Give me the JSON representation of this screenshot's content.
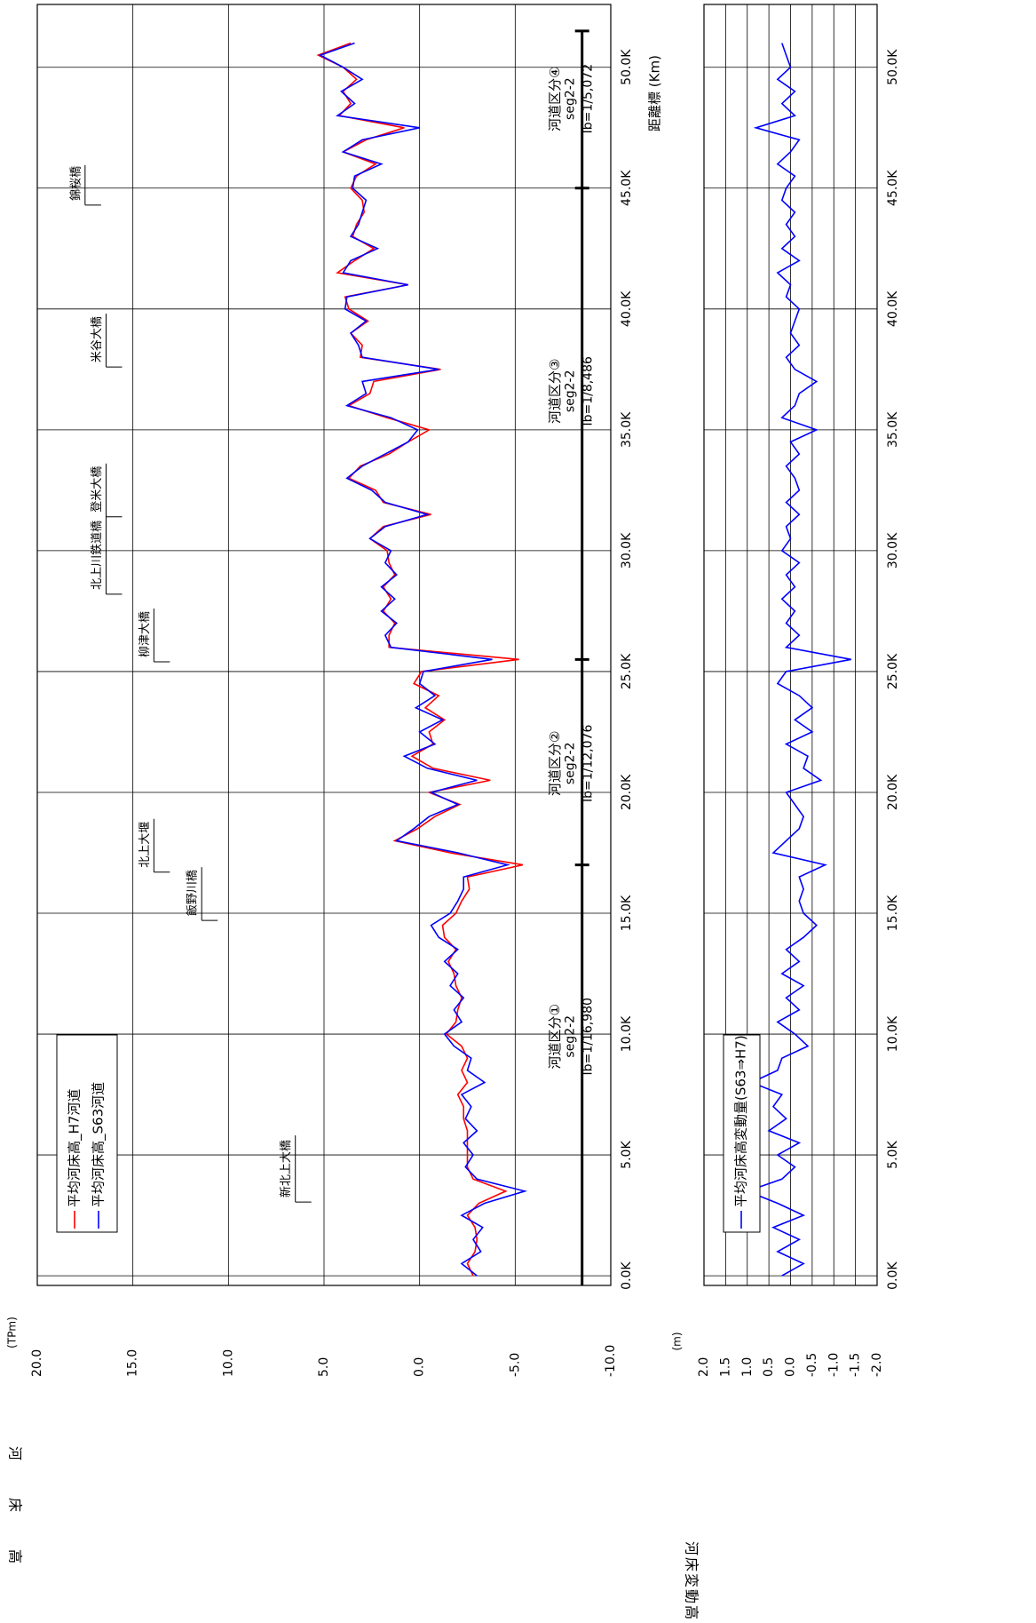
{
  "chart_data": [
    {
      "type": "line",
      "y_label": "河床高",
      "y_unit": "(TPm)",
      "x_label": "距離標 (Km)",
      "xlim": [
        -0.4,
        52.6
      ],
      "xticks": [
        {
          "value": 0,
          "label": "0.0K"
        },
        {
          "value": 5,
          "label": "5.0K"
        },
        {
          "value": 10,
          "label": "10.0K"
        },
        {
          "value": 15,
          "label": "15.0K"
        },
        {
          "value": 20,
          "label": "20.0K"
        },
        {
          "value": 25,
          "label": "25.0K"
        },
        {
          "value": 30,
          "label": "30.0K"
        },
        {
          "value": 35,
          "label": "35.0K"
        },
        {
          "value": 40,
          "label": "40.0K"
        },
        {
          "value": 45,
          "label": "45.0K"
        },
        {
          "value": 50,
          "label": "50.0K"
        }
      ],
      "ylim": [
        -10,
        20
      ],
      "yticks": [
        {
          "value": 20,
          "label": "20.0"
        },
        {
          "value": 15,
          "label": "15.0"
        },
        {
          "value": 10,
          "label": "10.0"
        },
        {
          "value": 5,
          "label": "5.0"
        },
        {
          "value": 0,
          "label": "0.0"
        },
        {
          "value": -5,
          "label": "-5.0"
        },
        {
          "value": -10,
          "label": "-10.0"
        }
      ],
      "grid": true,
      "legend": "upper left",
      "x": [
        0,
        0.5,
        1,
        1.5,
        2,
        2.5,
        3,
        3.5,
        4,
        4.5,
        5,
        5.5,
        6,
        6.5,
        7,
        7.5,
        8,
        8.5,
        9,
        9.5,
        10,
        10.5,
        11,
        11.5,
        12,
        12.5,
        13,
        13.5,
        14,
        14.5,
        15,
        15.5,
        16,
        16.5,
        17,
        17.5,
        18,
        18.5,
        19,
        19.5,
        20,
        20.5,
        21,
        21.5,
        22,
        22.5,
        23,
        23.5,
        24,
        24.5,
        25,
        25.5,
        26,
        26.5,
        27,
        27.5,
        28,
        28.5,
        29,
        29.5,
        30,
        30.5,
        31,
        31.5,
        32,
        32.5,
        33,
        33.5,
        34,
        34.5,
        35,
        35.5,
        36,
        36.5,
        37,
        37.5,
        38,
        38.5,
        39,
        39.5,
        40,
        40.5,
        41,
        41.5,
        42,
        42.5,
        43,
        43.5,
        44,
        44.5,
        45,
        45.5,
        46,
        46.5,
        47,
        47.5,
        48,
        48.5,
        49,
        49.5,
        50,
        50.5,
        51
      ],
      "series": [
        {
          "name": "平均河床高_H7河道",
          "color": "#ff0000",
          "values": [
            -2.8,
            -2.5,
            -2.9,
            -3.0,
            -2.9,
            -2.5,
            -3.1,
            -4.5,
            -2.8,
            -2.5,
            -2.5,
            -2.5,
            -2.5,
            -2.3,
            -2.3,
            -2.0,
            -2.5,
            -2.2,
            -2.5,
            -2.2,
            -1.4,
            -1.9,
            -2.0,
            -2.2,
            -1.9,
            -1.8,
            -1.5,
            -1.9,
            -1.3,
            -1.2,
            -1.9,
            -2.2,
            -2.6,
            -2.5,
            -5.4,
            -1.6,
            1.3,
            0.1,
            -0.8,
            -2.1,
            -0.5,
            -3.7,
            -0.7,
            0.4,
            -0.7,
            -0.5,
            -1.3,
            -0.3,
            -1.0,
            0.3,
            -0.1,
            -5.2,
            1.6,
            1.6,
            1.3,
            1.9,
            1.5,
            1.9,
            1.3,
            1.6,
            1.7,
            2.6,
            1.9,
            -0.6,
            1.9,
            2.3,
            3.7,
            3.1,
            1.6,
            0.6,
            -0.5,
            1.7,
            3.7,
            2.6,
            2.4,
            -1.1,
            3.1,
            3.0,
            3.6,
            2.7,
            3.7,
            3.9,
            0.6,
            4.3,
            3.4,
            2.4,
            3.5,
            3.3,
            2.9,
            3.0,
            3.6,
            3.3,
            2.3,
            4.0,
            2.8,
            0.8,
            4.2,
            3.6,
            4.0,
            3.3,
            4.0,
            5.3,
            3.6
          ]
        },
        {
          "name": "平均河床高_S63河道",
          "color": "#0000ff",
          "values": [
            -3.0,
            -2.2,
            -3.2,
            -2.8,
            -3.3,
            -2.2,
            -3.4,
            -5.5,
            -3.0,
            -2.4,
            -2.8,
            -2.3,
            -3.0,
            -2.4,
            -2.7,
            -2.2,
            -3.4,
            -2.5,
            -2.7,
            -1.8,
            -1.3,
            -2.2,
            -1.8,
            -2.3,
            -1.6,
            -2.0,
            -1.3,
            -2.0,
            -1.0,
            -0.6,
            -1.6,
            -2.0,
            -2.3,
            -2.3,
            -4.6,
            -2.0,
            1.2,
            0.3,
            -0.5,
            -2.0,
            -0.6,
            -3.0,
            -0.4,
            0.8,
            -0.8,
            0.0,
            -1.2,
            0.2,
            -0.8,
            0.0,
            -0.2,
            -3.8,
            1.5,
            1.8,
            1.2,
            2.0,
            1.3,
            2.0,
            1.2,
            1.8,
            1.5,
            2.6,
            1.8,
            -0.4,
            1.8,
            2.5,
            3.8,
            3.0,
            1.8,
            0.6,
            0.1,
            1.5,
            3.8,
            2.8,
            3.0,
            -1.0,
            3.0,
            3.2,
            3.6,
            2.8,
            3.9,
            3.8,
            0.6,
            4.0,
            3.6,
            2.2,
            3.6,
            3.2,
            3.0,
            2.8,
            3.5,
            3.4,
            2.0,
            4.0,
            3.0,
            0.0,
            4.3,
            3.4,
            4.1,
            3.0,
            4.0,
            5.2,
            3.4
          ]
        }
      ],
      "annotations": [
        {
          "text": "新北上大橋",
          "x": 3.05,
          "y": 6.5
        },
        {
          "text": "飯野川橋",
          "x": 14.7,
          "y": 11.4
        },
        {
          "text": "北上大堰",
          "x": 16.7,
          "y": 13.9
        },
        {
          "text": "柳津大橋",
          "x": 25.4,
          "y": 13.9
        },
        {
          "text": "北上川鉄道橋",
          "x": 28.2,
          "y": 16.4
        },
        {
          "text": "登米大橋",
          "x": 31.4,
          "y": 16.4
        },
        {
          "text": "米谷大橋",
          "x": 37.6,
          "y": 16.4
        },
        {
          "text": "錦桜橋",
          "x": 44.3,
          "y": 17.5
        }
      ],
      "segment_level": -8.5,
      "segment_breaks": [
        17,
        25.5,
        45,
        51.5
      ],
      "segments": [
        {
          "name": "河道区分①",
          "seg": "seg2-2",
          "slope": "Ib=1/16,980",
          "x": 9.9
        },
        {
          "name": "河道区分②",
          "seg": "seg2-2",
          "slope": "Ib=1/12,076",
          "x": 21.2
        },
        {
          "name": "河道区分③",
          "seg": "seg2-2",
          "slope": "Ib=1/8,486",
          "x": 36.6
        },
        {
          "name": "河道区分④",
          "seg": "seg2-2",
          "slope": "Ib=1/5,072",
          "x": 48.7
        }
      ]
    },
    {
      "type": "line",
      "y_label": "河床変動高",
      "y_unit": "(m)",
      "xlim": [
        -0.4,
        52.6
      ],
      "xticks": [
        {
          "value": 0,
          "label": "0.0K"
        },
        {
          "value": 5,
          "label": "5.0K"
        },
        {
          "value": 10,
          "label": "10.0K"
        },
        {
          "value": 15,
          "label": "15.0K"
        },
        {
          "value": 20,
          "label": "20.0K"
        },
        {
          "value": 25,
          "label": "25.0K"
        },
        {
          "value": 30,
          "label": "30.0K"
        },
        {
          "value": 35,
          "label": "35.0K"
        },
        {
          "value": 40,
          "label": "40.0K"
        },
        {
          "value": 45,
          "label": "45.0K"
        },
        {
          "value": 50,
          "label": "50.0K"
        }
      ],
      "ylim": [
        -2,
        2
      ],
      "yticks": [
        {
          "value": 2,
          "label": "2.0"
        },
        1.5,
        {
          "value": 1,
          "label": "1.0"
        },
        0.5,
        {
          "value": 0,
          "label": "0.0"
        },
        -0.5,
        {
          "value": -1,
          "label": "-1.0"
        },
        -1.5,
        {
          "value": -2,
          "label": "-2.0"
        }
      ],
      "grid": true,
      "legend": "upper left",
      "x": [
        0,
        0.5,
        1,
        1.5,
        2,
        2.5,
        3,
        3.5,
        4,
        4.5,
        5,
        5.5,
        6,
        6.5,
        7,
        7.5,
        8,
        8.5,
        9,
        9.5,
        10,
        10.5,
        11,
        11.5,
        12,
        12.5,
        13,
        13.5,
        14,
        14.5,
        15,
        15.5,
        16,
        16.5,
        17,
        17.5,
        18,
        18.5,
        19,
        19.5,
        20,
        20.5,
        21,
        21.5,
        22,
        22.5,
        23,
        23.5,
        24,
        24.5,
        25,
        25.5,
        26,
        26.5,
        27,
        27.5,
        28,
        28.5,
        29,
        29.5,
        30,
        30.5,
        31,
        31.5,
        32,
        32.5,
        33,
        33.5,
        34,
        34.5,
        35,
        35.5,
        36,
        36.5,
        37,
        37.5,
        38,
        38.5,
        39,
        39.5,
        40,
        40.5,
        41,
        41.5,
        42,
        42.5,
        43,
        43.5,
        44,
        44.5,
        45,
        45.5,
        46,
        46.5,
        47,
        47.5,
        48,
        48.5,
        49,
        49.5,
        50,
        50.5,
        51
      ],
      "series": [
        {
          "name": "平均河床高変動量(S63⇒H7)",
          "color": "#0000ff",
          "values": [
            0.2,
            -0.3,
            0.3,
            -0.2,
            0.4,
            -0.3,
            0.3,
            1.0,
            0.2,
            -0.1,
            0.3,
            -0.2,
            0.5,
            0.1,
            0.4,
            0.2,
            0.9,
            0.3,
            0.2,
            -0.4,
            -0.1,
            0.3,
            -0.2,
            0.1,
            -0.3,
            0.2,
            -0.2,
            0.1,
            -0.3,
            -0.6,
            -0.3,
            -0.2,
            -0.3,
            -0.2,
            -0.8,
            0.4,
            0.1,
            -0.2,
            -0.3,
            -0.1,
            0.1,
            -0.7,
            -0.3,
            -0.4,
            0.1,
            -0.5,
            -0.1,
            -0.5,
            -0.2,
            0.3,
            0.1,
            -1.4,
            0.1,
            -0.2,
            0.1,
            -0.1,
            0.2,
            -0.1,
            0.1,
            -0.2,
            0.2,
            0.0,
            0.1,
            -0.2,
            0.1,
            -0.2,
            -0.1,
            0.1,
            -0.2,
            0.0,
            -0.6,
            0.2,
            -0.1,
            -0.2,
            -0.6,
            -0.1,
            0.1,
            -0.2,
            0.0,
            -0.1,
            -0.2,
            0.1,
            0.0,
            0.3,
            -0.2,
            0.2,
            -0.1,
            0.1,
            -0.1,
            0.2,
            0.1,
            -0.1,
            0.3,
            0.0,
            -0.2,
            0.8,
            -0.1,
            0.2,
            -0.1,
            0.3,
            0.0,
            0.1,
            0.2
          ]
        }
      ]
    }
  ]
}
